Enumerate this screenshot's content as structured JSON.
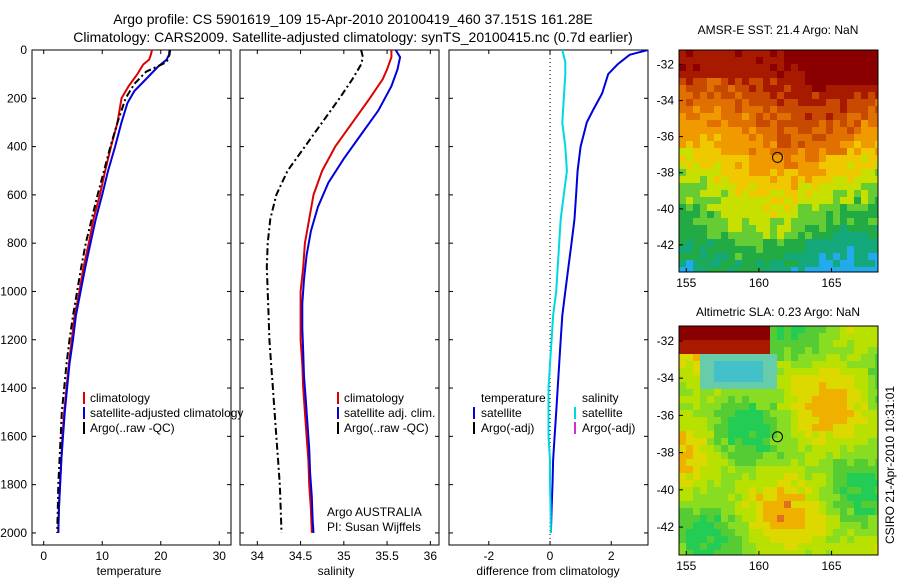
{
  "title_line1": "Argo profile: CS 5901619_109 15-Apr-2010 20100419_460 37.151S 161.28E",
  "title_line2": "Climatology: CARS2009. Satellite-adjusted climatology: synTS_20100415.nc (0.7d earlier)",
  "side_label": "CSIRO 21-Apr-2010 10:31:01",
  "chart_data": [
    {
      "type": "line",
      "id": "temperature",
      "xlabel": "temperature",
      "ylabel": "",
      "xlim": [
        -2,
        32
      ],
      "ylim": [
        0,
        2050
      ],
      "y_inverted": true,
      "xticks": [
        0,
        10,
        20,
        30
      ],
      "yticks": [
        0,
        200,
        400,
        600,
        800,
        1000,
        1200,
        1400,
        1600,
        1800,
        2000
      ],
      "legend": [
        "climatology",
        "satellite-adjusted climatology",
        "Argo(..raw -QC)"
      ],
      "series": [
        {
          "name": "climatology",
          "color": "#dd0000",
          "style": "solid",
          "points": [
            [
              18.5,
              0
            ],
            [
              18.3,
              20
            ],
            [
              18.0,
              40
            ],
            [
              17.0,
              60
            ],
            [
              16.0,
              100
            ],
            [
              14.5,
              150
            ],
            [
              13.3,
              200
            ],
            [
              12.6,
              300
            ],
            [
              11.5,
              400
            ],
            [
              10.5,
              500
            ],
            [
              9.6,
              600
            ],
            [
              8.5,
              700
            ],
            [
              7.7,
              800
            ],
            [
              6.8,
              900
            ],
            [
              6.1,
              1000
            ],
            [
              5.3,
              1100
            ],
            [
              4.8,
              1200
            ],
            [
              4.3,
              1300
            ],
            [
              3.9,
              1400
            ],
            [
              3.5,
              1500
            ],
            [
              3.2,
              1600
            ],
            [
              3.0,
              1700
            ],
            [
              2.8,
              1800
            ],
            [
              2.6,
              1900
            ],
            [
              2.5,
              2000
            ]
          ]
        },
        {
          "name": "satellite-adjusted climatology",
          "color": "#0000dd",
          "style": "solid",
          "points": [
            [
              21.5,
              0
            ],
            [
              21.4,
              20
            ],
            [
              21.0,
              40
            ],
            [
              19.5,
              70
            ],
            [
              17.5,
              120
            ],
            [
              15.5,
              170
            ],
            [
              14.3,
              220
            ],
            [
              13.3,
              300
            ],
            [
              12.2,
              400
            ],
            [
              11.0,
              500
            ],
            [
              10.0,
              600
            ],
            [
              8.9,
              700
            ],
            [
              8.0,
              800
            ],
            [
              7.1,
              900
            ],
            [
              6.3,
              1000
            ],
            [
              5.5,
              1100
            ],
            [
              5.0,
              1200
            ],
            [
              4.4,
              1300
            ],
            [
              4.0,
              1400
            ],
            [
              3.6,
              1500
            ],
            [
              3.3,
              1600
            ],
            [
              3.0,
              1700
            ],
            [
              2.8,
              1800
            ],
            [
              2.6,
              1900
            ],
            [
              2.5,
              2000
            ]
          ]
        },
        {
          "name": "Argo(..raw -QC)",
          "color": "#000000",
          "style": "dashdot",
          "points": [
            [
              21.6,
              0
            ],
            [
              21.5,
              20
            ],
            [
              21.0,
              50
            ],
            [
              17.5,
              90
            ],
            [
              15.5,
              140
            ],
            [
              14.0,
              200
            ],
            [
              12.6,
              300
            ],
            [
              11.4,
              400
            ],
            [
              10.3,
              500
            ],
            [
              9.2,
              600
            ],
            [
              8.2,
              700
            ],
            [
              7.2,
              800
            ],
            [
              6.4,
              900
            ],
            [
              5.7,
              1000
            ],
            [
              5.0,
              1100
            ],
            [
              4.4,
              1200
            ],
            [
              3.9,
              1300
            ],
            [
              3.5,
              1400
            ],
            [
              3.1,
              1500
            ],
            [
              2.9,
              1600
            ],
            [
              2.7,
              1700
            ],
            [
              2.5,
              1800
            ],
            [
              2.4,
              1900
            ],
            [
              2.3,
              2000
            ]
          ]
        }
      ]
    },
    {
      "type": "line",
      "id": "salinity",
      "xlabel": "salinity",
      "ylabel": "",
      "xlim": [
        33.8,
        36.1
      ],
      "ylim": [
        0,
        2050
      ],
      "y_inverted": true,
      "xticks": [
        34,
        34.5,
        35,
        35.5,
        36
      ],
      "legend": [
        "climatology",
        "satellite adj. clim.",
        "Argo(..raw -QC)"
      ],
      "annotation": [
        "Argo AUSTRALIA",
        "PI: Susan Wijffels"
      ],
      "series": [
        {
          "name": "climatology",
          "color": "#dd0000",
          "style": "solid",
          "points": [
            [
              35.55,
              0
            ],
            [
              35.55,
              30
            ],
            [
              35.5,
              80
            ],
            [
              35.45,
              120
            ],
            [
              35.3,
              200
            ],
            [
              35.1,
              300
            ],
            [
              34.9,
              400
            ],
            [
              34.75,
              500
            ],
            [
              34.65,
              600
            ],
            [
              34.6,
              700
            ],
            [
              34.55,
              800
            ],
            [
              34.53,
              900
            ],
            [
              34.5,
              1000
            ],
            [
              34.5,
              1100
            ],
            [
              34.5,
              1200
            ],
            [
              34.52,
              1300
            ],
            [
              34.53,
              1400
            ],
            [
              34.55,
              1500
            ],
            [
              34.57,
              1600
            ],
            [
              34.59,
              1700
            ],
            [
              34.6,
              1800
            ],
            [
              34.62,
              1900
            ],
            [
              34.63,
              2000
            ]
          ]
        },
        {
          "name": "satellite adj. clim.",
          "color": "#0000dd",
          "style": "solid",
          "points": [
            [
              35.6,
              0
            ],
            [
              35.65,
              30
            ],
            [
              35.62,
              80
            ],
            [
              35.55,
              150
            ],
            [
              35.4,
              250
            ],
            [
              35.2,
              350
            ],
            [
              35.0,
              450
            ],
            [
              34.82,
              550
            ],
            [
              34.7,
              650
            ],
            [
              34.62,
              750
            ],
            [
              34.57,
              850
            ],
            [
              34.54,
              950
            ],
            [
              34.52,
              1050
            ],
            [
              34.52,
              1150
            ],
            [
              34.53,
              1250
            ],
            [
              34.54,
              1350
            ],
            [
              34.56,
              1450
            ],
            [
              34.58,
              1550
            ],
            [
              34.6,
              1650
            ],
            [
              34.61,
              1750
            ],
            [
              34.63,
              1850
            ],
            [
              34.64,
              1950
            ],
            [
              34.65,
              2000
            ]
          ]
        },
        {
          "name": "Argo(..raw -QC)",
          "color": "#000000",
          "style": "dashdot",
          "points": [
            [
              35.2,
              0
            ],
            [
              35.22,
              30
            ],
            [
              35.2,
              60
            ],
            [
              35.1,
              120
            ],
            [
              34.95,
              200
            ],
            [
              34.75,
              300
            ],
            [
              34.55,
              400
            ],
            [
              34.35,
              500
            ],
            [
              34.22,
              600
            ],
            [
              34.15,
              700
            ],
            [
              34.12,
              800
            ],
            [
              34.11,
              900
            ],
            [
              34.12,
              1000
            ],
            [
              34.13,
              1100
            ],
            [
              34.14,
              1200
            ],
            [
              34.16,
              1300
            ],
            [
              34.18,
              1400
            ],
            [
              34.2,
              1500
            ],
            [
              34.22,
              1600
            ],
            [
              34.24,
              1700
            ],
            [
              34.26,
              1800
            ],
            [
              34.27,
              1900
            ],
            [
              34.28,
              2000
            ]
          ]
        }
      ]
    },
    {
      "type": "line",
      "id": "difference",
      "xlabel": "difference from climatology",
      "ylabel": "",
      "xlim": [
        -3.3,
        3.2
      ],
      "ylim": [
        0,
        2050
      ],
      "y_inverted": true,
      "xticks": [
        -2,
        0,
        2
      ],
      "legend": [
        "temperature",
        "satellite",
        "Argo(-adj)",
        "salinity",
        "satellite",
        "Argo(-adj)"
      ],
      "series": [
        {
          "name": "temperature satellite",
          "color": "#0000dd",
          "style": "solid",
          "points": [
            [
              3.2,
              0
            ],
            [
              2.6,
              20
            ],
            [
              2.2,
              60
            ],
            [
              1.9,
              100
            ],
            [
              1.7,
              180
            ],
            [
              1.4,
              250
            ],
            [
              1.2,
              300
            ],
            [
              1.0,
              400
            ],
            [
              0.9,
              500
            ],
            [
              0.85,
              600
            ],
            [
              0.8,
              700
            ],
            [
              0.7,
              800
            ],
            [
              0.6,
              900
            ],
            [
              0.5,
              1000
            ],
            [
              0.4,
              1100
            ],
            [
              0.35,
              1200
            ],
            [
              0.3,
              1300
            ],
            [
              0.25,
              1400
            ],
            [
              0.2,
              1500
            ],
            [
              0.15,
              1600
            ],
            [
              0.1,
              1700
            ],
            [
              0.08,
              1800
            ],
            [
              0.05,
              1900
            ],
            [
              0.03,
              2000
            ]
          ]
        },
        {
          "name": "salinity satellite",
          "color": "#00d8e0",
          "style": "solid",
          "points": [
            [
              0.4,
              0
            ],
            [
              0.5,
              50
            ],
            [
              0.5,
              100
            ],
            [
              0.45,
              200
            ],
            [
              0.4,
              300
            ],
            [
              0.5,
              400
            ],
            [
              0.55,
              500
            ],
            [
              0.45,
              600
            ],
            [
              0.35,
              700
            ],
            [
              0.3,
              800
            ],
            [
              0.25,
              900
            ],
            [
              0.2,
              1000
            ],
            [
              0.1,
              1100
            ],
            [
              0.05,
              1200
            ],
            [
              0.0,
              1300
            ],
            [
              -0.05,
              1400
            ],
            [
              -0.05,
              1500
            ],
            [
              -0.05,
              1600
            ],
            [
              0.0,
              1700
            ],
            [
              0.0,
              1800
            ],
            [
              0.02,
              1900
            ],
            [
              0.03,
              2000
            ]
          ]
        }
      ]
    },
    {
      "type": "heatmap",
      "id": "amsr",
      "title": "AMSR-E SST: 21.4 Argo: NaN",
      "xlim": [
        154.5,
        168.2
      ],
      "ylim": [
        -43.5,
        -31.2
      ],
      "xticks": [
        155,
        160,
        165
      ],
      "yticks": [
        -32,
        -34,
        -36,
        -38,
        -40,
        -42
      ],
      "marker": [
        161.28,
        -37.151
      ]
    },
    {
      "type": "heatmap",
      "id": "sla",
      "title": "Altimetric SLA: 0.23 Argo: NaN",
      "xlim": [
        154.5,
        168.2
      ],
      "ylim": [
        -43.5,
        -31.2
      ],
      "xticks": [
        155,
        160,
        165
      ],
      "yticks": [
        -32,
        -34,
        -36,
        -38,
        -40,
        -42
      ],
      "marker": [
        161.28,
        -37.151
      ]
    }
  ]
}
